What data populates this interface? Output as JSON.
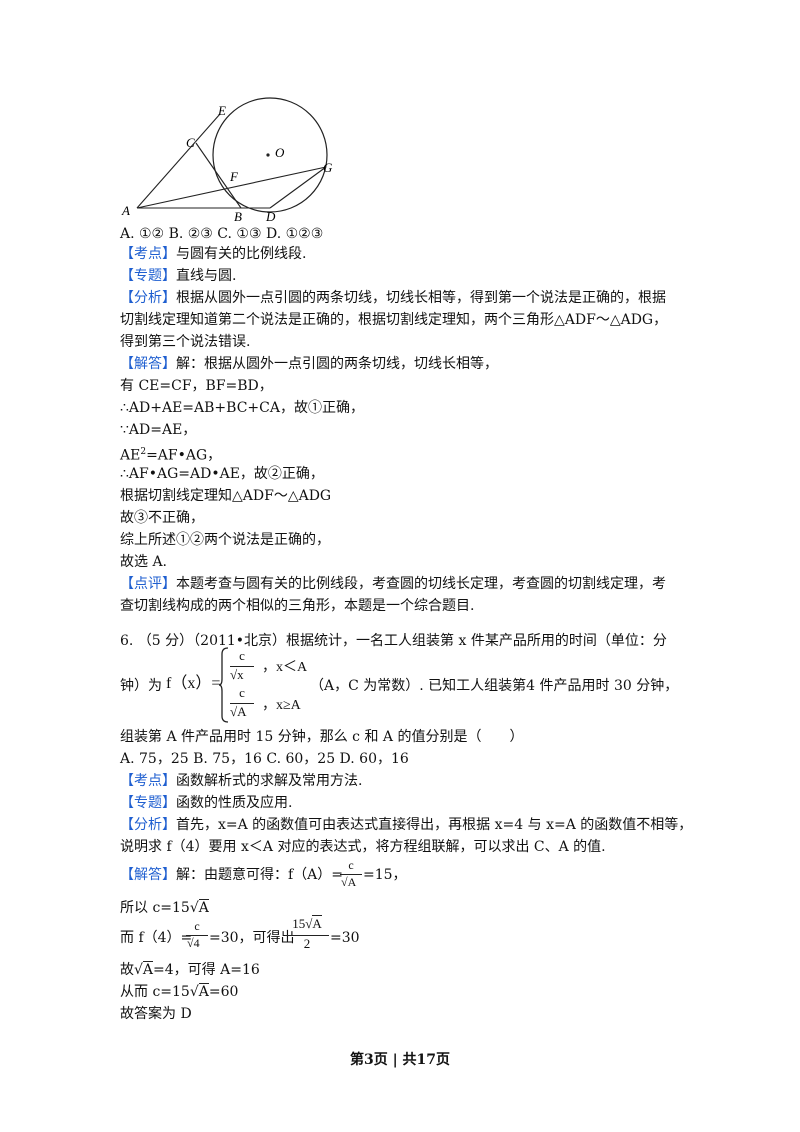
{
  "figure": {
    "labels": {
      "E": "E",
      "C": "C",
      "O": "O",
      "G": "G",
      "F": "F",
      "A": "A",
      "B": "B",
      "D": "D"
    }
  },
  "q5": {
    "options": "A.  ①② B.  ②③ C.  ①③ D.  ①②③",
    "kaodian_tag": "【考点】",
    "kaodian": "与圆有关的比例线段.",
    "zhuanti_tag": "【专题】",
    "zhuanti": "直线与圆.",
    "fenxi_tag": "【分析】",
    "fenxi_1": "根据从圆外一点引圆的两条切线，切线长相等，得到第一个说法是正确的，根据",
    "fenxi_2": "切割线定理知道第二个说法是正确的，根据切割线定理知，两个三角形△ADF～△ADG，",
    "fenxi_3": "得到第三个说法错误.",
    "jieda_tag": "【解答】",
    "jieda_1": "解：根据从圆外一点引圆的两条切线，切线长相等，",
    "jieda_2": "有 CE=CF，BF=BD，",
    "jieda_3": "∴AD+AE=AB+BC+CA，故①正确，",
    "jieda_4": "∵AD=AE，",
    "jieda_5a": "AE",
    "jieda_5sup": "2",
    "jieda_5b": "=AF•AG，",
    "jieda_6": "∴AF•AG=AD•AE，故②正确，",
    "jieda_7": "根据切割线定理知△ADF～△ADG",
    "jieda_8": "故③不正确，",
    "jieda_9": "综上所述①②两个说法是正确的，",
    "jieda_10": "故选 A.",
    "dianping_tag": "【点评】",
    "dianping_1": "本题考查与圆有关的比例线段，考查圆的切线长定理，考查圆的切割线定理，考",
    "dianping_2": "查切割线构成的两个相似的三角形，本题是一个综合题目."
  },
  "q6": {
    "stem_1": "6.  （5 分）（2011•北京）根据统计，一名工人组装第 x 件某产品所用的时间（单位：分",
    "stem_2a": "钟）为",
    "stem_2f": "f（x）=",
    "case1_num": "c",
    "case1_den": "x",
    "case1_cond": "，x＜A",
    "case2_num": "c",
    "case2_den": "A",
    "case2_cond": "，x≥A",
    "stem_2b": "（A，C 为常数）. 已知工人组装第4 件产品用时 30 分钟，",
    "stem_3": "组装第 A 件产品用时 15 分钟，那么 c 和 A 的值分别是（　　）",
    "options": "A.  75，25    B.  75，16    C.  60，25    D.  60，16",
    "kaodian_tag": "【考点】",
    "kaodian": "函数解析式的求解及常用方法.",
    "zhuanti_tag": "【专题】",
    "zhuanti": "函数的性质及应用.",
    "fenxi_tag": "【分析】",
    "fenxi_1": "首先，x=A 的函数值可由表达式直接得出，再根据 x=4 与 x=A 的函数值不相等，",
    "fenxi_2": "说明求 f（4）要用 x＜A 对应的表达式，将方程组联解，可以求出 C、A 的值.",
    "jieda_tag": "【解答】",
    "jieda_1a": "解：由题意可得：f（A）=",
    "jieda_1num": "c",
    "jieda_1den": "A",
    "jieda_1b": "=15，",
    "jieda_2a": "所以 c=15",
    "jieda_2rad": "A",
    "jieda_3a": "而 f（4）=",
    "jieda_3num": "c",
    "jieda_3den": "4",
    "jieda_3b": "=30，可得出",
    "jieda_3num2a": "15",
    "jieda_3num2rad": "A",
    "jieda_3den2": "2",
    "jieda_3c": "=30",
    "jieda_4a": "故",
    "jieda_4rad": "A",
    "jieda_4b": "=4，可得 A=16",
    "jieda_5a": "从而 c=15",
    "jieda_5rad": "A",
    "jieda_5b": "=60",
    "jieda_6": "故答案为 D"
  },
  "footer": "第3页 | 共17页"
}
